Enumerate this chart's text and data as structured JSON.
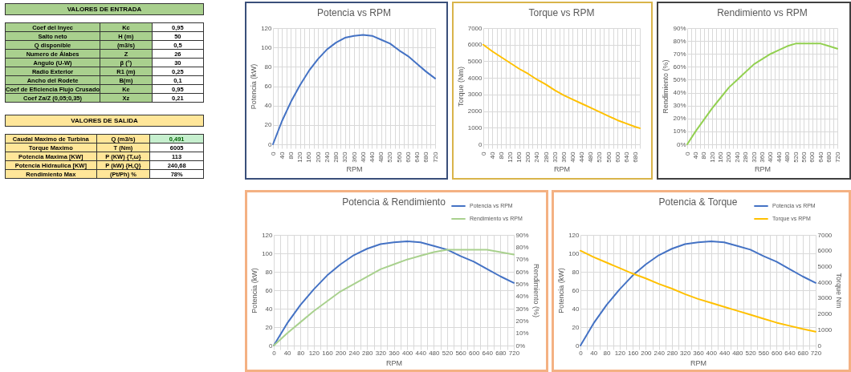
{
  "chart_data": [
    {
      "type": "other",
      "title": "VALORES DE ENTRADA",
      "annotations": [
        "Coef del Inyec",
        "Kc",
        "0,95",
        "Salto neto",
        "H (m)",
        "50",
        "Q disponible",
        "(m3/s)",
        "0,5",
        "Numero de Álabes",
        "Z",
        "26",
        "Angulo (U-W)",
        "β (°)",
        "30",
        "Radio Exterior",
        "R1 (m)",
        "0,25",
        "Ancho del Rodete",
        "B(m)",
        "0,1",
        "Coef de Eficiencia Flujo Crusado",
        "Ke",
        "0,95",
        "Coef Za/Z (0,05;0,35)",
        "Xz",
        "0,21"
      ]
    },
    {
      "type": "line",
      "title": "Potencia vs RPM",
      "xlabel": "RPM",
      "ylabel": "Potencia (kW)",
      "x": [
        0,
        40,
        80,
        120,
        160,
        200,
        240,
        280,
        320,
        360,
        400,
        440,
        480,
        520,
        560,
        600,
        640,
        680,
        720
      ],
      "series": [
        {
          "color": "#4472c4",
          "values": [
            0,
            24,
            44,
            61,
            76,
            88,
            98,
            105,
            110,
            112,
            113,
            112,
            108,
            104,
            97,
            91,
            83,
            75,
            68
          ]
        }
      ],
      "xlim": [
        0,
        720
      ],
      "xticks": [
        0,
        {
          "value": 20,
          "label": null
        },
        40,
        {
          "value": 60,
          "label": null
        },
        80,
        {
          "value": 100,
          "label": null
        },
        120,
        {
          "value": 140,
          "label": null
        },
        160,
        {
          "value": 180,
          "label": null
        },
        200,
        {
          "value": 220,
          "label": null
        },
        240,
        {
          "value": 260,
          "label": null
        },
        280,
        {
          "value": 300,
          "label": null
        },
        320,
        {
          "value": 340,
          "label": null
        },
        360,
        {
          "value": 380,
          "label": null
        },
        400,
        {
          "value": 420,
          "label": null
        },
        440,
        {
          "value": 460,
          "label": null
        },
        480,
        {
          "value": 500,
          "label": null
        },
        520,
        {
          "value": 540,
          "label": null
        },
        560,
        {
          "value": 580,
          "label": null
        },
        600,
        {
          "value": 620,
          "label": null
        },
        640,
        {
          "value": 660,
          "label": null
        },
        680,
        {
          "value": 700,
          "label": null
        },
        720
      ],
      "ylim": [
        0,
        120
      ],
      "yticks": [
        0,
        20,
        40,
        60,
        80,
        100,
        120
      ],
      "grid": true
    },
    {
      "type": "line",
      "title": "Torque vs RPM",
      "xlabel": "RPM",
      "ylabel": "Torque (Nm)",
      "x": [
        0,
        40,
        80,
        120,
        160,
        200,
        240,
        280,
        320,
        360,
        400,
        440,
        480,
        520,
        560,
        600,
        640,
        680,
        700
      ],
      "series": [
        {
          "color": "#ffc000",
          "values": [
            6000,
            5600,
            5250,
            4900,
            4550,
            4250,
            3900,
            3600,
            3250,
            2950,
            2700,
            2450,
            2200,
            1950,
            1700,
            1450,
            1250,
            1050,
            970
          ]
        }
      ],
      "xlim": [
        0,
        700
      ],
      "xticks": [
        0,
        {
          "value": 20,
          "label": null
        },
        40,
        {
          "value": 60,
          "label": null
        },
        80,
        {
          "value": 100,
          "label": null
        },
        120,
        {
          "value": 140,
          "label": null
        },
        160,
        {
          "value": 180,
          "label": null
        },
        200,
        {
          "value": 220,
          "label": null
        },
        240,
        {
          "value": 260,
          "label": null
        },
        280,
        {
          "value": 300,
          "label": null
        },
        320,
        {
          "value": 340,
          "label": null
        },
        360,
        {
          "value": 380,
          "label": null
        },
        400,
        {
          "value": 420,
          "label": null
        },
        440,
        {
          "value": 460,
          "label": null
        },
        480,
        {
          "value": 500,
          "label": null
        },
        520,
        {
          "value": 540,
          "label": null
        },
        560,
        {
          "value": 580,
          "label": null
        },
        600,
        {
          "value": 620,
          "label": null
        },
        640,
        {
          "value": 660,
          "label": null
        },
        680,
        {
          "value": 700,
          "label": null
        }
      ],
      "ylim": [
        0,
        7000
      ],
      "yticks": [
        0,
        1000,
        2000,
        3000,
        4000,
        5000,
        6000,
        7000
      ],
      "grid": true
    },
    {
      "type": "line",
      "title": "Rendimiento vs RPM",
      "xlabel": "RPM",
      "ylabel": "Rendimiento (%)",
      "x": [
        0,
        40,
        80,
        120,
        160,
        200,
        240,
        280,
        320,
        360,
        400,
        440,
        480,
        520,
        560,
        600,
        640,
        680,
        720
      ],
      "series": [
        {
          "color": "#92d050",
          "values": [
            0,
            10,
            19,
            28,
            36,
            44,
            50,
            56,
            62,
            66,
            70,
            73,
            76,
            78,
            78,
            78,
            78,
            76,
            74
          ]
        }
      ],
      "xlim": [
        0,
        720
      ],
      "xticks": [
        0,
        {
          "value": 20,
          "label": null
        },
        40,
        {
          "value": 60,
          "label": null
        },
        80,
        {
          "value": 100,
          "label": null
        },
        120,
        {
          "value": 140,
          "label": null
        },
        160,
        {
          "value": 180,
          "label": null
        },
        200,
        {
          "value": 220,
          "label": null
        },
        240,
        {
          "value": 260,
          "label": null
        },
        280,
        {
          "value": 300,
          "label": null
        },
        320,
        {
          "value": 340,
          "label": null
        },
        360,
        {
          "value": 380,
          "label": null
        },
        400,
        {
          "value": 420,
          "label": null
        },
        440,
        {
          "value": 460,
          "label": null
        },
        480,
        {
          "value": 500,
          "label": null
        },
        520,
        {
          "value": 540,
          "label": null
        },
        560,
        {
          "value": 580,
          "label": null
        },
        600,
        {
          "value": 620,
          "label": null
        },
        640,
        {
          "value": 660,
          "label": null
        },
        680,
        {
          "value": 700,
          "label": null
        },
        720
      ],
      "ylim": [
        0,
        90
      ],
      "yticks": [
        {
          "value": 0,
          "label": "0%"
        },
        {
          "value": 10,
          "label": "10%"
        },
        {
          "value": 20,
          "label": "20%"
        },
        {
          "value": 30,
          "label": "30%"
        },
        {
          "value": 40,
          "label": "40%"
        },
        {
          "value": 50,
          "label": "50%"
        },
        {
          "value": 60,
          "label": "60%"
        },
        {
          "value": 70,
          "label": "70%"
        },
        {
          "value": 80,
          "label": "80%"
        },
        {
          "value": 90,
          "label": "90%"
        }
      ],
      "grid": true
    },
    {
      "type": "other",
      "title": "VALORES DE SALIDA",
      "annotations": [
        "Caudal Maximo de Turbina",
        "Q (m3/s)",
        "0,491",
        "Torque Maximo",
        "T (Nm)",
        "6005",
        "Potencia Maxima [KW]",
        "P (KW) {T,ω}",
        "113",
        "Potencia Hidraulica [KW]",
        "P (kW) {H,Q}",
        "240,68",
        "Rendimiento Max",
        "(Pt/Ph) %",
        "78%"
      ]
    },
    {
      "type": "line",
      "title": "Potencia & Rendimiento",
      "xlabel": "RPM",
      "ylabel": "Potencia (kW)",
      "y2label": "Rendimiento (%)",
      "x": [
        0,
        40,
        80,
        120,
        160,
        200,
        240,
        280,
        320,
        360,
        400,
        440,
        480,
        520,
        560,
        600,
        640,
        680,
        720
      ],
      "series": [
        {
          "name": "Potencia vs RPM",
          "color": "#4472c4",
          "values": [
            0,
            24,
            44,
            61,
            76,
            88,
            98,
            105,
            110,
            112,
            113,
            112,
            108,
            104,
            97,
            91,
            83,
            75,
            68
          ]
        },
        {
          "name": "Rendimiento vs RPM",
          "color": "#a9d18e",
          "axis": "y2",
          "values": [
            0,
            10,
            19,
            28,
            36,
            44,
            50,
            56,
            62,
            66,
            70,
            73,
            76,
            78,
            78,
            78,
            78,
            76,
            74
          ]
        }
      ],
      "xlim": [
        0,
        720
      ],
      "xticks": [
        0,
        {
          "value": 20,
          "label": null
        },
        40,
        {
          "value": 60,
          "label": null
        },
        80,
        {
          "value": 100,
          "label": null
        },
        120,
        {
          "value": 140,
          "label": null
        },
        160,
        {
          "value": 180,
          "label": null
        },
        200,
        {
          "value": 220,
          "label": null
        },
        240,
        {
          "value": 260,
          "label": null
        },
        280,
        {
          "value": 300,
          "label": null
        },
        320,
        {
          "value": 340,
          "label": null
        },
        360,
        {
          "value": 380,
          "label": null
        },
        400,
        {
          "value": 420,
          "label": null
        },
        440,
        {
          "value": 460,
          "label": null
        },
        480,
        {
          "value": 500,
          "label": null
        },
        520,
        {
          "value": 540,
          "label": null
        },
        560,
        {
          "value": 580,
          "label": null
        },
        600,
        {
          "value": 620,
          "label": null
        },
        640,
        {
          "value": 660,
          "label": null
        },
        680,
        {
          "value": 700,
          "label": null
        },
        720
      ],
      "ylim": [
        0,
        120
      ],
      "yticks": [
        0,
        20,
        40,
        60,
        80,
        100,
        120
      ],
      "y2lim": [
        0,
        90
      ],
      "y2ticks": [
        {
          "value": 0,
          "label": "0%"
        },
        {
          "value": 10,
          "label": "10%"
        },
        {
          "value": 20,
          "label": "20%"
        },
        {
          "value": 30,
          "label": "30%"
        },
        {
          "value": 40,
          "label": "40%"
        },
        {
          "value": 50,
          "label": "50%"
        },
        {
          "value": 60,
          "label": "60%"
        },
        {
          "value": 70,
          "label": "70%"
        },
        {
          "value": 80,
          "label": "80%"
        },
        {
          "value": 90,
          "label": "90%"
        }
      ],
      "grid": true,
      "legend": "top right"
    },
    {
      "type": "line",
      "title": "Potencia & Torque",
      "xlabel": "RPM",
      "ylabel": "Potencia (kW)",
      "y2label": "Torque Nm",
      "x": [
        0,
        40,
        80,
        120,
        160,
        200,
        240,
        280,
        320,
        360,
        400,
        440,
        480,
        520,
        560,
        600,
        640,
        680,
        720
      ],
      "series": [
        {
          "name": "Potencia vs RPM",
          "color": "#4472c4",
          "values": [
            0,
            24,
            44,
            61,
            76,
            88,
            98,
            105,
            110,
            112,
            113,
            112,
            108,
            104,
            97,
            91,
            83,
            75,
            68
          ]
        },
        {
          "name": "Torque vs RPM",
          "color": "#ffc000",
          "axis": "y2",
          "values": [
            6000,
            5600,
            5250,
            4900,
            4550,
            4250,
            3900,
            3600,
            3250,
            2950,
            2700,
            2450,
            2200,
            1950,
            1700,
            1450,
            1250,
            1050,
            880
          ]
        }
      ],
      "xlim": [
        0,
        720
      ],
      "xticks": [
        0,
        {
          "value": 20,
          "label": null
        },
        40,
        {
          "value": 60,
          "label": null
        },
        80,
        {
          "value": 100,
          "label": null
        },
        120,
        {
          "value": 140,
          "label": null
        },
        160,
        {
          "value": 180,
          "label": null
        },
        200,
        {
          "value": 220,
          "label": null
        },
        240,
        {
          "value": 260,
          "label": null
        },
        280,
        {
          "value": 300,
          "label": null
        },
        320,
        {
          "value": 340,
          "label": null
        },
        360,
        {
          "value": 380,
          "label": null
        },
        400,
        {
          "value": 420,
          "label": null
        },
        440,
        {
          "value": 460,
          "label": null
        },
        480,
        {
          "value": 500,
          "label": null
        },
        520,
        {
          "value": 540,
          "label": null
        },
        560,
        {
          "value": 580,
          "label": null
        },
        600,
        {
          "value": 620,
          "label": null
        },
        640,
        {
          "value": 660,
          "label": null
        },
        680,
        {
          "value": 700,
          "label": null
        },
        720
      ],
      "ylim": [
        0,
        120
      ],
      "yticks": [
        0,
        20,
        40,
        60,
        80,
        100,
        120
      ],
      "y2lim": [
        0,
        7000
      ],
      "y2ticks": [
        0,
        1000,
        2000,
        3000,
        4000,
        5000,
        6000,
        7000
      ],
      "grid": true,
      "legend": "top right"
    }
  ]
}
